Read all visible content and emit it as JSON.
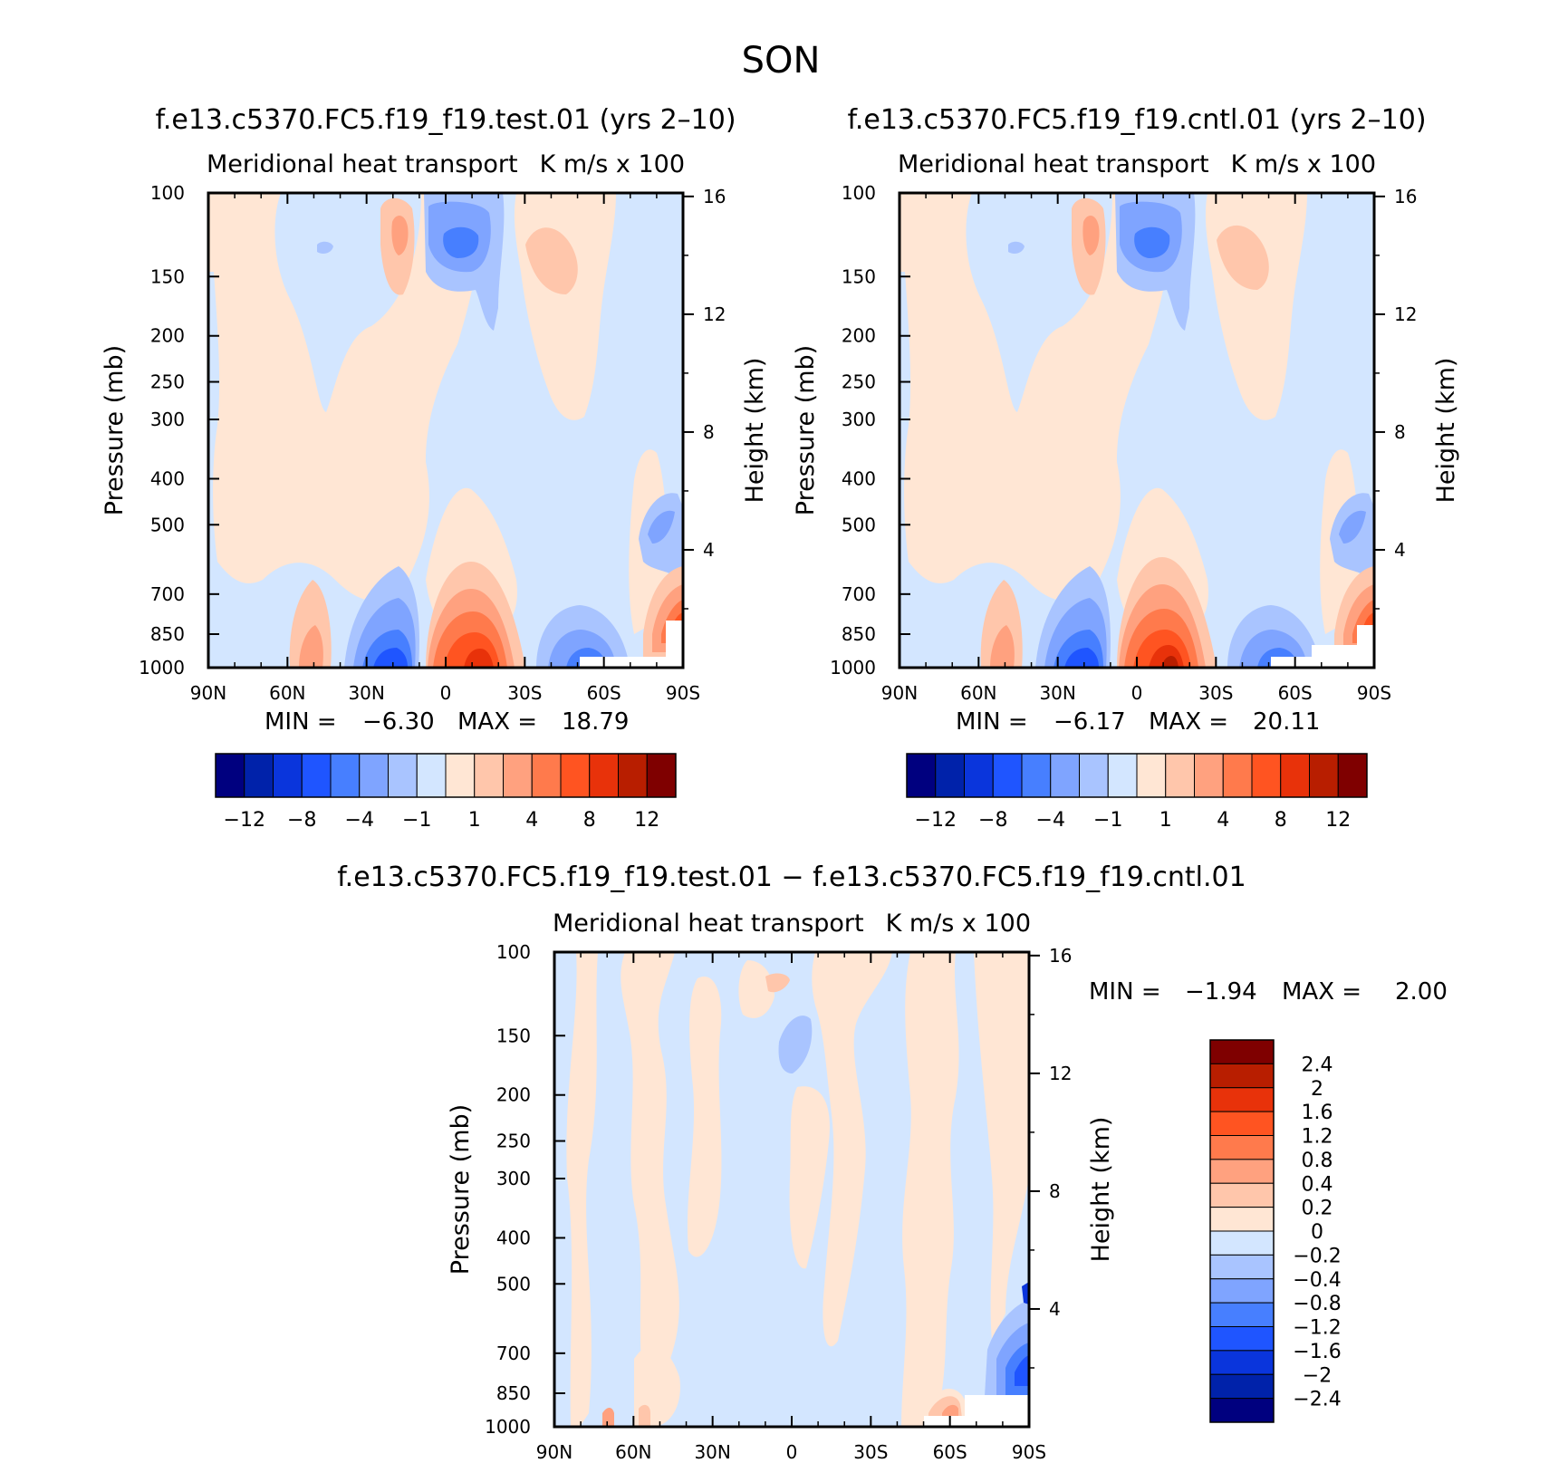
{
  "page_title": "SON",
  "panels": [
    {
      "id": "test",
      "title": "f.e13.c5370.FC5.f19_f19.test.01 (yrs 2–10)",
      "left_subtitle": "Meridional heat transport",
      "right_subtitle": "K m/s x 100",
      "min_label": "MIN =",
      "min_value": "−6.30",
      "max_label": "MAX =",
      "max_value": "18.79"
    },
    {
      "id": "cntl",
      "title": "f.e13.c5370.FC5.f19_f19.cntl.01 (yrs 2–10)",
      "left_subtitle": "Meridional heat transport",
      "right_subtitle": "K m/s x 100",
      "min_label": "MIN =",
      "min_value": "−6.17",
      "max_label": "MAX =",
      "max_value": "20.11"
    },
    {
      "id": "diff",
      "title": "f.e13.c5370.FC5.f19_f19.test.01 − f.e13.c5370.FC5.f19_f19.cntl.01",
      "left_subtitle": "Meridional heat transport",
      "right_subtitle": "K m/s x 100",
      "min_label": "MIN =",
      "min_value": "−1.94",
      "max_label": "MAX =",
      "max_value": "2.00"
    }
  ],
  "chart_data": {
    "type": "heatmap",
    "axes": {
      "x_ticks": [
        "90N",
        "60N",
        "30N",
        "0",
        "30S",
        "60S",
        "90S"
      ],
      "x_range": [
        90,
        -90
      ],
      "ylabel": "Pressure (mb)",
      "y_ticks": [
        "100",
        "150",
        "200",
        "250",
        "300",
        "400",
        "500",
        "700",
        "850",
        "1000"
      ],
      "y_range": [
        100,
        1000
      ],
      "y2label": "Height (km)",
      "y2_ticks": [
        "16",
        "12",
        "8",
        "4"
      ]
    },
    "colorbar_main": {
      "labels": [
        "−12",
        "−8",
        "−4",
        "−1",
        "1",
        "4",
        "8",
        "12"
      ],
      "colors": [
        "#00007f",
        "#0022aa",
        "#0a35dc",
        "#1f55ff",
        "#477fff",
        "#7fa4ff",
        "#a9c4ff",
        "#d3e6ff",
        "#ffe6d4",
        "#ffc6ab",
        "#ffa17f",
        "#ff7a4c",
        "#ff5421",
        "#e8320a",
        "#b81e00",
        "#7f0000"
      ]
    },
    "colorbar_diff": {
      "labels": [
        "2.4",
        "2",
        "1.6",
        "1.2",
        "0.8",
        "0.4",
        "0.2",
        "0",
        "−0.2",
        "−0.4",
        "−0.8",
        "−1.2",
        "−1.6",
        "−2",
        "−2.4"
      ],
      "colors": [
        "#7f0000",
        "#b81e00",
        "#e8320a",
        "#ff5421",
        "#ff7a4c",
        "#ffa17f",
        "#ffc6ab",
        "#ffe6d4",
        "#d3e6ff",
        "#a9c4ff",
        "#7fa4ff",
        "#477fff",
        "#1f55ff",
        "#0a35dc",
        "#0022aa",
        "#00007f"
      ]
    }
  }
}
